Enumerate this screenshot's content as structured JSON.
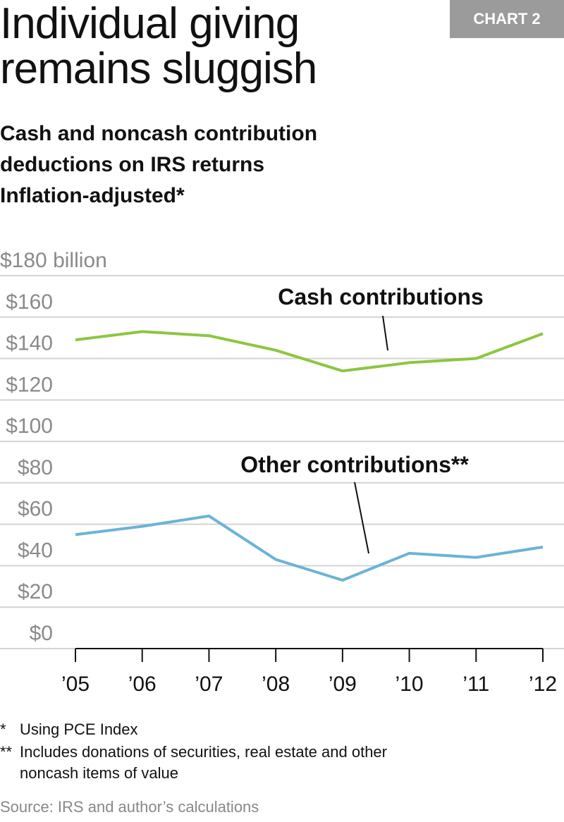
{
  "badge": "CHART 2",
  "title_lines": [
    "Individual giving",
    "remains sluggish"
  ],
  "subtitle_lines": [
    "Cash and noncash contribution",
    "deductions on IRS returns",
    "Inflation-adjusted*"
  ],
  "chart_data": {
    "type": "line",
    "categories": [
      "’05",
      "’06",
      "’07",
      "’08",
      "’09",
      "’10",
      "’11",
      "’12"
    ],
    "ylim": [
      0,
      180
    ],
    "yticks": [
      0,
      20,
      40,
      60,
      80,
      100,
      120,
      140,
      160,
      180
    ],
    "ytick_labels": [
      "$0",
      "$20",
      "$40",
      "$60",
      "$80",
      "$100",
      "$120",
      "$140",
      "$160",
      "$180 billion"
    ],
    "grid": true,
    "series": [
      {
        "name": "Cash contributions",
        "color": "#8cc63f",
        "values": [
          149,
          153,
          151,
          144,
          134,
          138,
          140,
          152
        ]
      },
      {
        "name": "Other contributions**",
        "color": "#6bb3d6",
        "values": [
          55,
          59,
          64,
          43,
          33,
          46,
          44,
          49
        ]
      }
    ]
  },
  "footnotes": {
    "f1_mark": "*",
    "f1": "Using PCE Index",
    "f2_mark": "**",
    "f2_line1": "Includes donations of securities, real estate and other",
    "f2_line2": "noncash items of value",
    "source": "Source: IRS and author’s calculations"
  }
}
